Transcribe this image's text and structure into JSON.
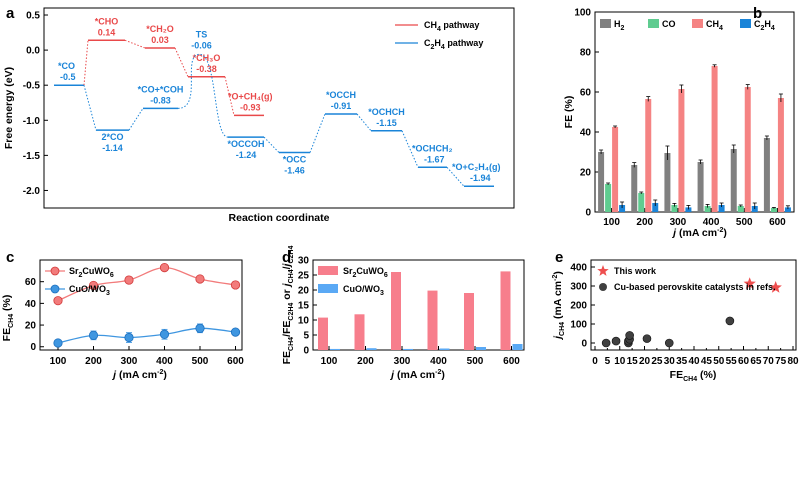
{
  "colors": {
    "ch4": "#e9494a",
    "c2h4": "#1a84d8",
    "h2": "#808080",
    "co": "#5fcc90",
    "ch4_bar": "#f58383",
    "sr_bar": "#f77e8c",
    "cuo_bar": "#5aa9f5",
    "sr_line": "#f27b7b",
    "cuo_line": "#3f96e0",
    "star": "#ee4f4f",
    "dot": "#404040"
  },
  "chart_data": [
    {
      "panel": "a",
      "type": "line",
      "ylabel": "Free energy (eV)",
      "xlabel": "Reaction coordinate",
      "ylim": [
        -2.25,
        0.6
      ],
      "yticks": [
        "0.5",
        "0.0",
        "-0.5",
        "-1.0",
        "-1.5",
        "-2.0"
      ],
      "yvals": [
        0.5,
        0.0,
        -0.5,
        -1.0,
        -1.5,
        -2.0
      ],
      "legend": [
        "CH₄ pathway",
        "C₂H₄ pathway"
      ],
      "shared": [
        {
          "label": "*CO",
          "value": "-0.5",
          "y": -0.5
        }
      ],
      "ch4_states": [
        {
          "label": "*CHO",
          "value": "0.14",
          "y": 0.14
        },
        {
          "label": "*CH₂O",
          "value": "0.03",
          "y": 0.03
        },
        {
          "label": "*CH₃O",
          "value": "-0.38",
          "y": -0.38
        },
        {
          "label": "*O+CH₄(g)",
          "value": "-0.93",
          "y": -0.93
        }
      ],
      "c2h4_states": [
        {
          "label": "2*CO",
          "value": "-1.14",
          "y": -1.14
        },
        {
          "label": "*CO+*COH",
          "value": "-0.83",
          "y": -0.83
        },
        {
          "label": "TS",
          "value": "-0.06",
          "y": -0.06
        },
        {
          "label": "*OCCOH",
          "value": "-1.24",
          "y": -1.24
        },
        {
          "label": "*OCC",
          "value": "-1.46",
          "y": -1.46
        },
        {
          "label": "*OCCH",
          "value": "-0.91",
          "y": -0.91
        },
        {
          "label": "*OCHCH",
          "value": "-1.15",
          "y": -1.15
        },
        {
          "label": "*OCHCH₂",
          "value": "-1.67",
          "y": -1.67
        },
        {
          "label": "*O+C₂H₄(g)",
          "value": "-1.94",
          "y": -1.94
        }
      ]
    },
    {
      "panel": "b",
      "type": "bar",
      "ylabel": "FE (%)",
      "xlabel": "j (mA cm⁻²)",
      "ylim": [
        0,
        100
      ],
      "yticks": [
        "0",
        "20",
        "40",
        "60",
        "80",
        "100"
      ],
      "categories": [
        "100",
        "200",
        "300",
        "400",
        "500",
        "600"
      ],
      "series": [
        {
          "name": "H₂",
          "values": [
            30,
            23.5,
            29.5,
            25,
            31.5,
            37
          ],
          "err": [
            1,
            1.2,
            3.5,
            1,
            2,
            1
          ]
        },
        {
          "name": "CO",
          "values": [
            14,
            9.5,
            3.5,
            3,
            3,
            2
          ],
          "err": [
            0.5,
            0.5,
            0.8,
            0.8,
            0.5,
            0.3
          ]
        },
        {
          "name": "CH₄",
          "values": [
            42.5,
            56.5,
            61.5,
            73,
            62.5,
            57
          ],
          "err": [
            0.5,
            1.2,
            2,
            0.6,
            1.2,
            2
          ]
        },
        {
          "name": "C₂H₄",
          "values": [
            3.5,
            4.5,
            2.3,
            3.5,
            3,
            2.3
          ],
          "err": [
            1.5,
            1.5,
            1,
            1,
            1.5,
            0.8
          ]
        }
      ]
    },
    {
      "panel": "c",
      "type": "line",
      "ylabel": "FE",
      "ylabel_sub": "CH₄",
      "ylabel_unit": "(%)",
      "xlabel": "j (mA cm⁻²)",
      "ylim": [
        -3,
        80
      ],
      "yticks": [
        "0",
        "20",
        "40",
        "60"
      ],
      "categories": [
        "100",
        "200",
        "300",
        "400",
        "500",
        "600"
      ],
      "series": [
        {
          "name": "Sr₂CuWO₆",
          "values": [
            42.5,
            56.5,
            61.5,
            73,
            62.5,
            57
          ],
          "err": [
            1,
            1,
            1.5,
            1,
            1,
            1.5
          ]
        },
        {
          "name": "CuO/WO₃",
          "values": [
            3.5,
            10.5,
            8.5,
            11.5,
            17,
            13.5
          ],
          "err": [
            2,
            4,
            4.5,
            4.5,
            4,
            1
          ]
        }
      ]
    },
    {
      "panel": "d",
      "type": "bar",
      "ylabel": "FE_CH₄/FE_C₂H₄ or j_CH₄/j_C₂H₄",
      "xlabel": "j (mA cm⁻²)",
      "ylim": [
        0,
        30
      ],
      "yticks": [
        "0",
        "5",
        "10",
        "15",
        "20",
        "25",
        "30"
      ],
      "categories": [
        "100",
        "200",
        "300",
        "400",
        "500",
        "600"
      ],
      "series": [
        {
          "name": "Sr₂CuWO₆",
          "values": [
            10.8,
            11.9,
            26,
            19.8,
            19,
            26.2
          ]
        },
        {
          "name": "CuO/WO₃",
          "values": [
            0.35,
            0.6,
            0.35,
            0.5,
            1,
            2
          ]
        }
      ]
    },
    {
      "panel": "e",
      "type": "scatter",
      "ylabel": "j_CH₄ (mA cm⁻²)",
      "xlabel": "FE_CH₄ (%)",
      "xlim": [
        0,
        80
      ],
      "ylim": [
        -15,
        400
      ],
      "xticks": [
        "0",
        "5",
        "10",
        "15",
        "20",
        "25",
        "30",
        "35",
        "40",
        "45",
        "50",
        "55",
        "60",
        "65",
        "70",
        "75",
        "80"
      ],
      "yticks": [
        "0",
        "100",
        "200",
        "300",
        "400"
      ],
      "series": [
        {
          "name": "This work",
          "marker": "star",
          "points": [
            [
              62.5,
              312
            ],
            [
              73,
              292
            ]
          ]
        },
        {
          "name": "Cu-based perovskite catalysts in refs.",
          "marker": "circle",
          "points": [
            [
              4.5,
              0
            ],
            [
              8.5,
              10
            ],
            [
              13.5,
              0
            ],
            [
              13.5,
              10
            ],
            [
              14,
              20
            ],
            [
              14,
              40
            ],
            [
              21,
              23
            ],
            [
              30,
              0
            ],
            [
              54.5,
              116
            ]
          ]
        }
      ]
    }
  ],
  "panel_labels": {
    "a": "a",
    "b": "b",
    "c": "c",
    "d": "d",
    "e": "e"
  }
}
